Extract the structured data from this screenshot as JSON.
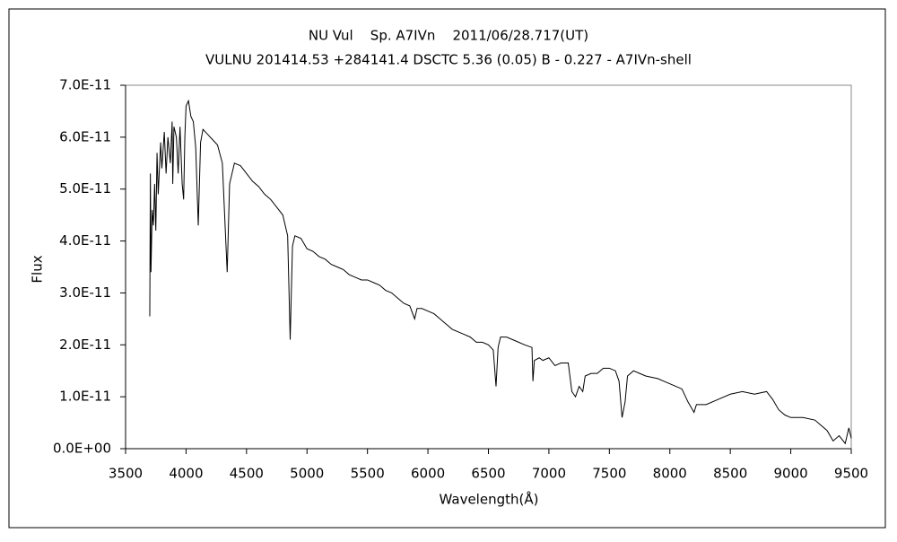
{
  "chart_data": {
    "type": "line",
    "title": "NU Vul    Sp. A7IVn    2011/06/28.717(UT)",
    "subtitle": "VULNU 201414.53 +284141.4 DSCTC 5.36 (0.05) B - 0.227 - A7IVn-shell",
    "x_label": "Wavelength(Å)",
    "y_label": "Flux",
    "color": "#000000",
    "xlim": [
      3500,
      9500
    ],
    "xticks": [
      3500,
      4000,
      4500,
      5000,
      5500,
      6000,
      6500,
      7000,
      7500,
      8000,
      8500,
      9000,
      9500
    ],
    "ylim": [
      0,
      7e-11
    ],
    "yticks": [
      {
        "value": 0,
        "label": "0.0E+00"
      },
      {
        "value": 1e-11,
        "label": "1.0E-11"
      },
      {
        "value": 2e-11,
        "label": "2.0E-11"
      },
      {
        "value": 3e-11,
        "label": "3.0E-11"
      },
      {
        "value": 4e-11,
        "label": "4.0E-11"
      },
      {
        "value": 5e-11,
        "label": "5.0E-11"
      },
      {
        "value": 6e-11,
        "label": "6.0E-11"
      },
      {
        "value": 7e-11,
        "label": "7.0E-11"
      }
    ],
    "x": [
      3700,
      3705,
      3710,
      3720,
      3730,
      3740,
      3750,
      3760,
      3770,
      3790,
      3800,
      3820,
      3835,
      3850,
      3870,
      3885,
      3890,
      3900,
      3920,
      3935,
      3950,
      3968,
      3980,
      3990,
      4000,
      4020,
      4040,
      4060,
      4080,
      4101,
      4120,
      4140,
      4180,
      4220,
      4260,
      4300,
      4340,
      4360,
      4400,
      4450,
      4500,
      4550,
      4600,
      4650,
      4700,
      4750,
      4800,
      4840,
      4861,
      4880,
      4900,
      4950,
      5000,
      5050,
      5100,
      5150,
      5200,
      5250,
      5300,
      5350,
      5400,
      5450,
      5500,
      5550,
      5600,
      5650,
      5700,
      5750,
      5800,
      5850,
      5890,
      5910,
      5950,
      6000,
      6050,
      6100,
      6150,
      6200,
      6250,
      6300,
      6350,
      6400,
      6450,
      6500,
      6540,
      6563,
      6580,
      6600,
      6650,
      6700,
      6750,
      6800,
      6860,
      6868,
      6880,
      6920,
      6950,
      7000,
      7050,
      7100,
      7160,
      7190,
      7220,
      7250,
      7280,
      7300,
      7350,
      7400,
      7450,
      7500,
      7550,
      7580,
      7605,
      7630,
      7650,
      7700,
      7750,
      7800,
      7900,
      7950,
      8000,
      8050,
      8100,
      8150,
      8200,
      8220,
      8300,
      8400,
      8500,
      8600,
      8700,
      8800,
      8850,
      8900,
      8950,
      9000,
      9100,
      9200,
      9250,
      9300,
      9350,
      9400,
      9450,
      9480,
      9500
    ],
    "values": [
      2.55e-11,
      5.3e-11,
      3.4e-11,
      4.6e-11,
      4.3e-11,
      5.1e-11,
      4.2e-11,
      5.7e-11,
      4.9e-11,
      5.9e-11,
      5.4e-11,
      6.1e-11,
      5.3e-11,
      6e-11,
      5.5e-11,
      6.3e-11,
      5.1e-11,
      6.2e-11,
      6e-11,
      5.3e-11,
      6.2e-11,
      5.1e-11,
      4.8e-11,
      6e-11,
      6.6e-11,
      6.7e-11,
      6.4e-11,
      6.3e-11,
      5.8e-11,
      4.3e-11,
      5.9e-11,
      6.15e-11,
      6.05e-11,
      5.95e-11,
      5.85e-11,
      5.5e-11,
      3.4e-11,
      5.1e-11,
      5.5e-11,
      5.45e-11,
      5.3e-11,
      5.15e-11,
      5.05e-11,
      4.9e-11,
      4.8e-11,
      4.65e-11,
      4.5e-11,
      4.1e-11,
      2.1e-11,
      3.9e-11,
      4.1e-11,
      4.05e-11,
      3.85e-11,
      3.8e-11,
      3.7e-11,
      3.65e-11,
      3.55e-11,
      3.5e-11,
      3.45e-11,
      3.35e-11,
      3.3e-11,
      3.25e-11,
      3.25e-11,
      3.2e-11,
      3.15e-11,
      3.05e-11,
      3e-11,
      2.9e-11,
      2.8e-11,
      2.75e-11,
      2.5e-11,
      2.7e-11,
      2.7e-11,
      2.65e-11,
      2.6e-11,
      2.5e-11,
      2.4e-11,
      2.3e-11,
      2.25e-11,
      2.2e-11,
      2.15e-11,
      2.05e-11,
      2.05e-11,
      2e-11,
      1.9e-11,
      1.2e-11,
      1.95e-11,
      2.15e-11,
      2.15e-11,
      2.1e-11,
      2.05e-11,
      2e-11,
      1.95e-11,
      1.3e-11,
      1.7e-11,
      1.75e-11,
      1.7e-11,
      1.75e-11,
      1.6e-11,
      1.65e-11,
      1.65e-11,
      1.1e-11,
      1e-11,
      1.2e-11,
      1.1e-11,
      1.4e-11,
      1.45e-11,
      1.45e-11,
      1.55e-11,
      1.55e-11,
      1.5e-11,
      1.3e-11,
      6e-12,
      9e-12,
      1.4e-11,
      1.5e-11,
      1.45e-11,
      1.4e-11,
      1.35e-11,
      1.3e-11,
      1.25e-11,
      1.2e-11,
      1.15e-11,
      9e-12,
      7e-12,
      8.5e-12,
      8.5e-12,
      9.5e-12,
      1.05e-11,
      1.1e-11,
      1.05e-11,
      1.1e-11,
      9.5e-12,
      7.5e-12,
      6.5e-12,
      6e-12,
      6e-12,
      5.5e-12,
      4.5e-12,
      3.5e-12,
      1.5e-12,
      2.5e-12,
      1e-12,
      4e-12,
      2e-12
    ]
  }
}
